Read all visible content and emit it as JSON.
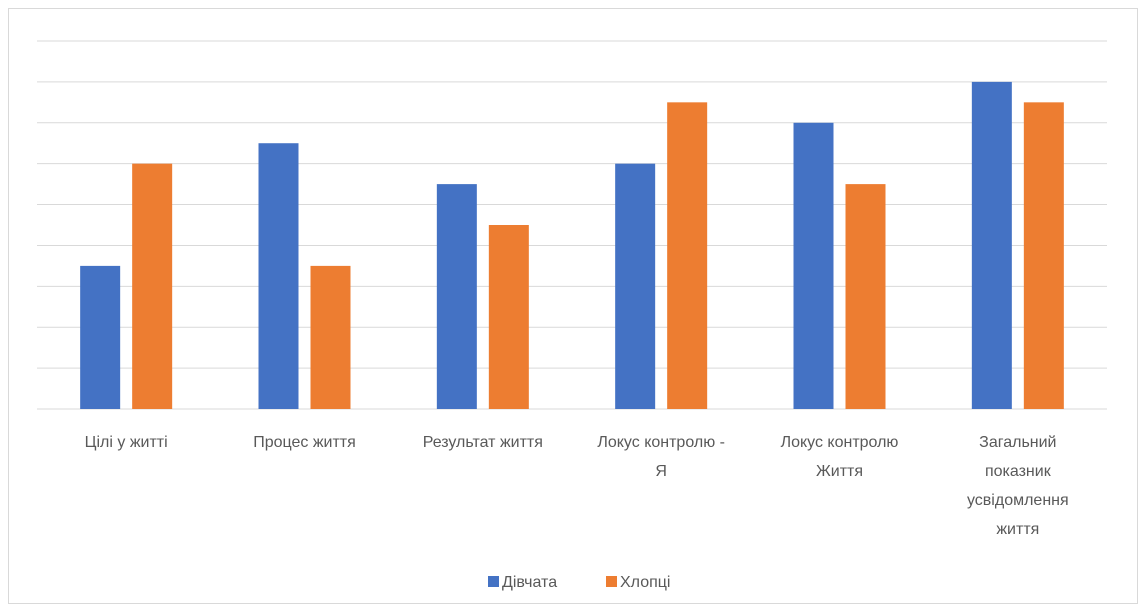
{
  "chart_data": {
    "type": "bar",
    "title": "",
    "xlabel": "",
    "ylabel": "",
    "categories": [
      "Цілі у житті",
      "Процес життя",
      "Результат  життя",
      "Локус контролю - Я",
      "Локус контролю Життя",
      "Загальний показник усвідомлення життя"
    ],
    "category_lines": [
      [
        "Цілі у житті"
      ],
      [
        "Процес життя"
      ],
      [
        "Результат  життя"
      ],
      [
        "Локус контролю -",
        "Я"
      ],
      [
        "Локус контролю",
        "Життя"
      ],
      [
        "Загальний",
        "показник",
        "усвідомлення",
        "життя"
      ]
    ],
    "series": [
      {
        "name": "Дівчата",
        "color": "#4472C4",
        "values": [
          3.5,
          6.5,
          5.5,
          6,
          7,
          8
        ]
      },
      {
        "name": "Хлопці",
        "color": "#ED7D31",
        "values": [
          6,
          3.5,
          4.5,
          7.5,
          5.5,
          7.5
        ]
      }
    ],
    "ylim": [
      0,
      9
    ],
    "grid": true,
    "legend": "bottom"
  }
}
